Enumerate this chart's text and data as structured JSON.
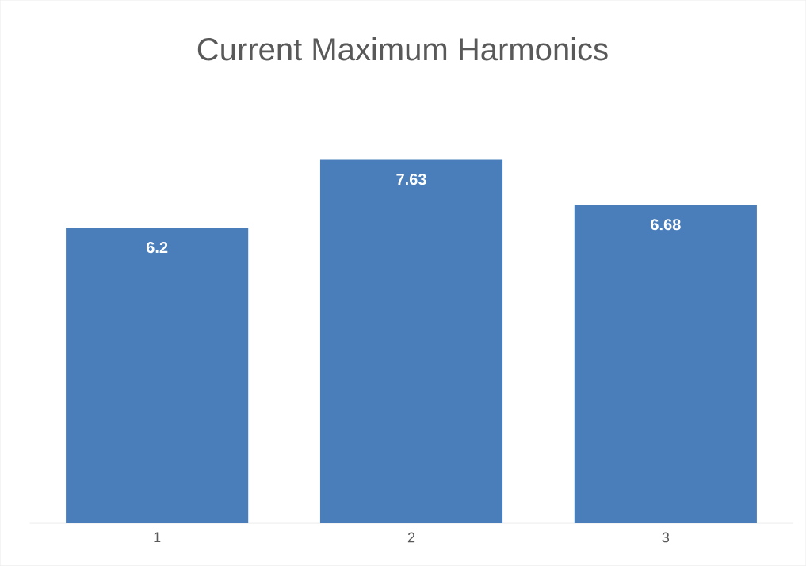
{
  "chart_data": {
    "type": "bar",
    "title": "Current Maximum Harmonics",
    "categories": [
      "1",
      "2",
      "3"
    ],
    "values": [
      6.2,
      7.63,
      6.68
    ],
    "color": "#4a7ebb",
    "data_labels": true
  }
}
